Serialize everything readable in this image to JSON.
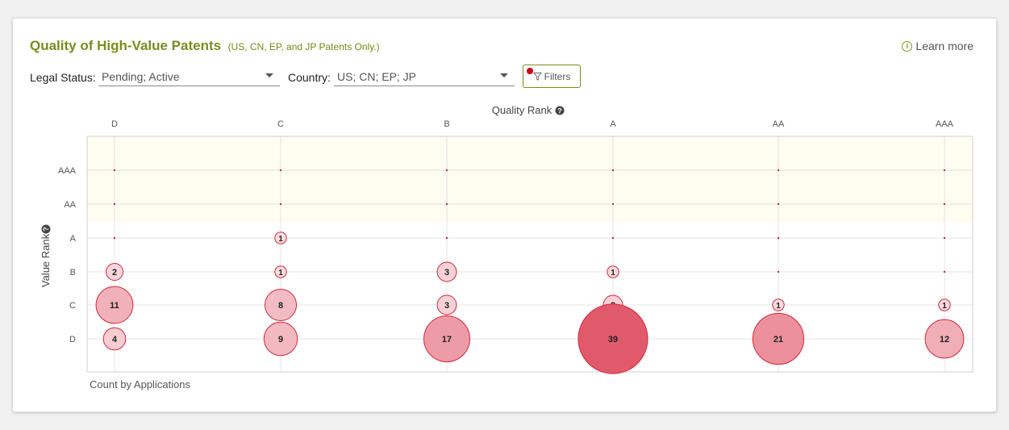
{
  "header": {
    "title": "Quality of High-Value Patents",
    "subtitle": "(US, CN, EP, and JP Patents Only.)",
    "learn_more": "Learn more",
    "info_icon": "i"
  },
  "filters": {
    "legal_status_label": "Legal Status:",
    "legal_status_value": "Pending; Active",
    "country_label": "Country:",
    "country_value": "US; CN; EP; JP",
    "filters_button": "Filters"
  },
  "colors": {
    "title": "#7a8c1e",
    "bubble_stroke": "#d2283c",
    "bubble_fill_light": "#fbe3e6",
    "bubble_fill_dark": "#e05a6c",
    "highlight_band": "#fdfdf0",
    "filter_dot": "#c8001e"
  },
  "chart_data": {
    "type": "scatter",
    "title": "",
    "xlabel": "Quality Rank",
    "ylabel": "Value Rank",
    "footer_label": "Count by Applications",
    "x_categories": [
      "D",
      "C",
      "B",
      "A",
      "AA",
      "AAA"
    ],
    "y_categories": [
      "D",
      "C",
      "B",
      "A",
      "AA",
      "AAA"
    ],
    "highlighted_rows": [
      "AAA",
      "AA"
    ],
    "points": [
      {
        "x": "C",
        "y": "A",
        "count": 1
      },
      {
        "x": "D",
        "y": "B",
        "count": 2
      },
      {
        "x": "C",
        "y": "B",
        "count": 1
      },
      {
        "x": "B",
        "y": "B",
        "count": 3
      },
      {
        "x": "A",
        "y": "B",
        "count": 1
      },
      {
        "x": "D",
        "y": "C",
        "count": 11
      },
      {
        "x": "C",
        "y": "C",
        "count": 8
      },
      {
        "x": "B",
        "y": "C",
        "count": 3
      },
      {
        "x": "A",
        "y": "C",
        "count": 3
      },
      {
        "x": "AA",
        "y": "C",
        "count": 1
      },
      {
        "x": "AAA",
        "y": "C",
        "count": 1
      },
      {
        "x": "D",
        "y": "D",
        "count": 4
      },
      {
        "x": "C",
        "y": "D",
        "count": 9
      },
      {
        "x": "B",
        "y": "D",
        "count": 17
      },
      {
        "x": "A",
        "y": "D",
        "count": 39
      },
      {
        "x": "AA",
        "y": "D",
        "count": 21
      },
      {
        "x": "AAA",
        "y": "D",
        "count": 12
      }
    ]
  }
}
